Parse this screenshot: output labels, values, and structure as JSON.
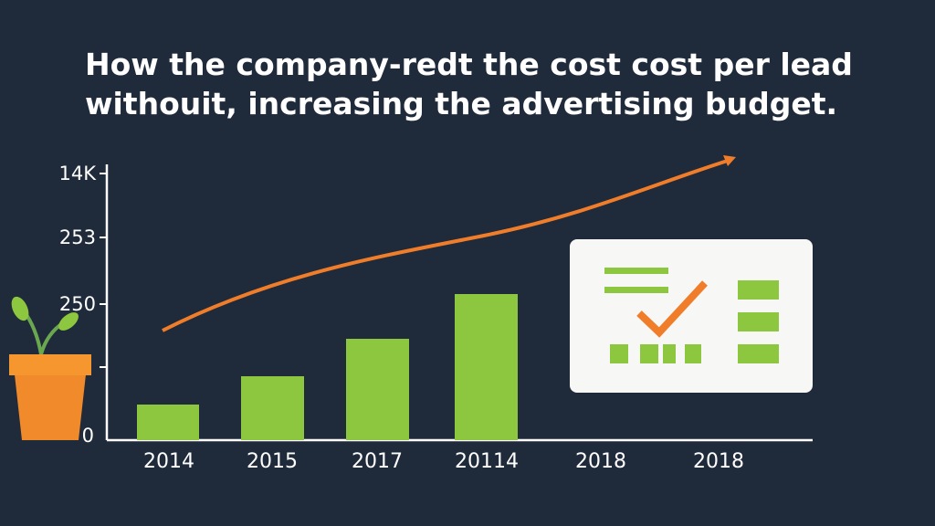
{
  "title": {
    "line1": "How the company-redt the cost cost per lead",
    "line2": "withouit, increasing the advertising budget."
  },
  "y_axis_labels": [
    "14K",
    "253",
    "250",
    "0"
  ],
  "x_axis_labels": [
    "2014",
    "2015",
    "2017",
    "20114",
    "2018",
    "2018"
  ]
}
